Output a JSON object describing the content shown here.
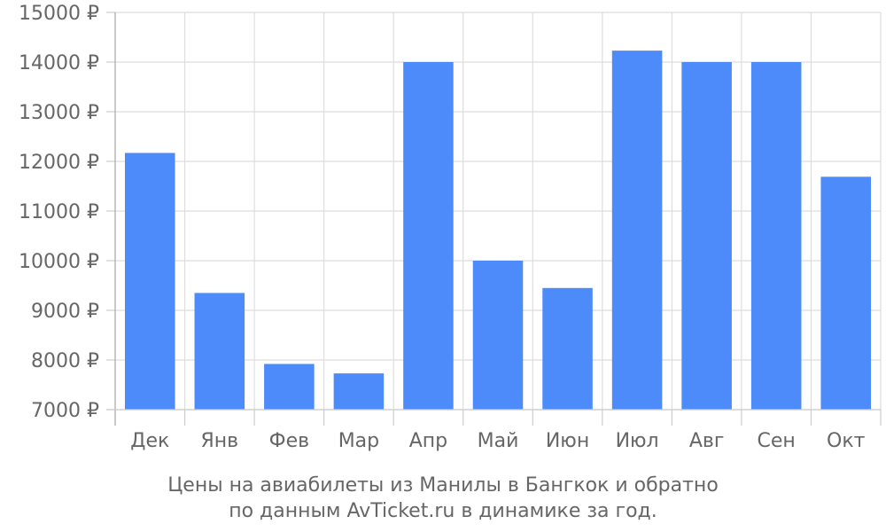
{
  "chart_data": {
    "type": "bar",
    "categories": [
      "Дек",
      "Янв",
      "Фев",
      "Мар",
      "Апр",
      "Май",
      "Июн",
      "Июл",
      "Авг",
      "Сен",
      "Окт"
    ],
    "values": [
      12170,
      9350,
      7920,
      7730,
      14000,
      10000,
      9450,
      14230,
      14000,
      14000,
      11690
    ],
    "ylim": [
      7000,
      15000
    ],
    "yticks": [
      7000,
      8000,
      9000,
      10000,
      11000,
      12000,
      13000,
      14000,
      15000
    ],
    "ytick_suffix": " ₽",
    "grid": true,
    "bar_color": "#4d8afa",
    "caption_line1": "Цены на авиабилеты из Манилы в Бангкок и обратно",
    "caption_line2": "по данным AvTicket.ru в динамике за год."
  }
}
